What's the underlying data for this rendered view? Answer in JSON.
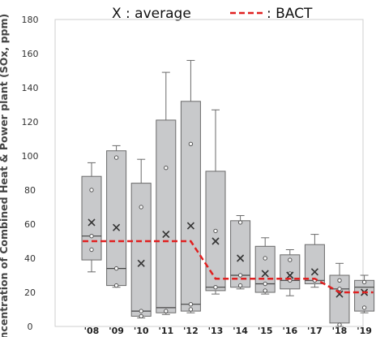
{
  "legend": {
    "average_label": "X : average",
    "bact_label": ": BACT"
  },
  "chart_data": {
    "type": "box",
    "ylabel": "Concentration of Combined Heat & Power plant (SOx, ppm)",
    "ylim": [
      0,
      180
    ],
    "yticks": [
      0,
      20,
      40,
      60,
      80,
      100,
      120,
      140,
      160,
      180
    ],
    "categories": [
      "'08",
      "'09",
      "'10",
      "'11",
      "'12",
      "'13",
      "'14",
      "'15",
      "'16",
      "'17",
      "'18",
      "'19"
    ],
    "boxes": [
      {
        "min": 32,
        "q1": 39,
        "median": 53,
        "q3": 88,
        "max": 96,
        "mean": 61,
        "points": [
          80,
          53,
          45
        ]
      },
      {
        "min": 23,
        "q1": 24,
        "median": 34,
        "q3": 103,
        "max": 106,
        "mean": 58,
        "points": [
          99,
          34,
          24
        ]
      },
      {
        "min": 5,
        "q1": 6,
        "median": 9,
        "q3": 84,
        "max": 98,
        "mean": 37,
        "points": [
          70,
          9,
          6
        ]
      },
      {
        "min": 7,
        "q1": 8,
        "median": 11,
        "q3": 121,
        "max": 149,
        "mean": 54,
        "points": [
          93,
          9
        ]
      },
      {
        "min": 8,
        "q1": 9,
        "median": 13,
        "q3": 132,
        "max": 156,
        "mean": 59,
        "points": [
          107,
          13,
          10
        ]
      },
      {
        "min": 19,
        "q1": 21,
        "median": 23,
        "q3": 91,
        "max": 127,
        "mean": 50,
        "points": [
          56,
          23
        ]
      },
      {
        "min": 22,
        "q1": 23,
        "median": 30,
        "q3": 62,
        "max": 65,
        "mean": 40,
        "points": [
          61,
          30,
          24
        ]
      },
      {
        "min": 19,
        "q1": 20,
        "median": 25,
        "q3": 47,
        "max": 52,
        "mean": 31,
        "points": [
          40,
          25,
          21
        ]
      },
      {
        "min": 18,
        "q1": 22,
        "median": 27,
        "q3": 42,
        "max": 45,
        "mean": 30,
        "points": [
          39,
          31,
          27
        ]
      },
      {
        "min": 23,
        "q1": 25,
        "median": 27,
        "q3": 48,
        "max": 54,
        "mean": 32,
        "points": [
          27
        ]
      },
      {
        "min": 0,
        "q1": 2,
        "median": 22,
        "q3": 30,
        "max": 37,
        "mean": 19,
        "points": [
          27,
          22,
          1
        ]
      },
      {
        "min": 8,
        "q1": 9,
        "median": 23,
        "q3": 27,
        "max": 30,
        "mean": 20,
        "points": [
          26,
          11
        ]
      }
    ],
    "bact": {
      "style": "dashed",
      "color": "#e02020",
      "steps": [
        {
          "from": 0,
          "to": 4,
          "value": 50
        },
        {
          "from": 5,
          "to": 9,
          "value": 28
        },
        {
          "from": 10,
          "to": 11,
          "value": 20
        }
      ]
    },
    "colors": {
      "box_fill": "#c8c9cb",
      "box_stroke": "#6a6a6a",
      "plot_border": "#cfcfcf",
      "bact": "#e02020"
    }
  }
}
